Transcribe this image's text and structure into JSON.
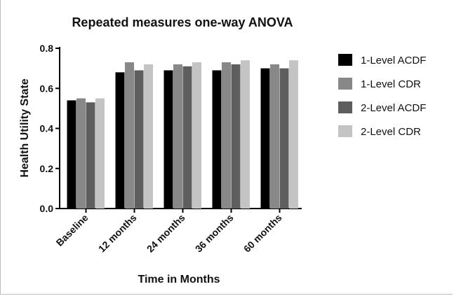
{
  "chart_data": {
    "type": "bar",
    "title": "Repeated measures one-way ANOVA",
    "xlabel": "Time in Months",
    "ylabel": "Health Utility State",
    "ylim": [
      0,
      0.8
    ],
    "yticks": [
      "0.0",
      "0.2",
      "0.4",
      "0.6",
      "0.8"
    ],
    "categories": [
      "Baseline",
      "12 months",
      "24 months",
      "36 months",
      "60 months"
    ],
    "series": [
      {
        "name": "1-Level ACDF",
        "color": "#000000",
        "values": [
          0.54,
          0.68,
          0.69,
          0.69,
          0.7
        ]
      },
      {
        "name": "1-Level CDR",
        "color": "#888888",
        "values": [
          0.55,
          0.73,
          0.72,
          0.73,
          0.72
        ]
      },
      {
        "name": "2-Level ACDF",
        "color": "#5e5e5e",
        "values": [
          0.53,
          0.69,
          0.71,
          0.72,
          0.7
        ]
      },
      {
        "name": "2-Level CDR",
        "color": "#c4c4c4",
        "values": [
          0.55,
          0.72,
          0.73,
          0.74,
          0.74
        ]
      }
    ],
    "grid": false,
    "legend_position": "right"
  }
}
